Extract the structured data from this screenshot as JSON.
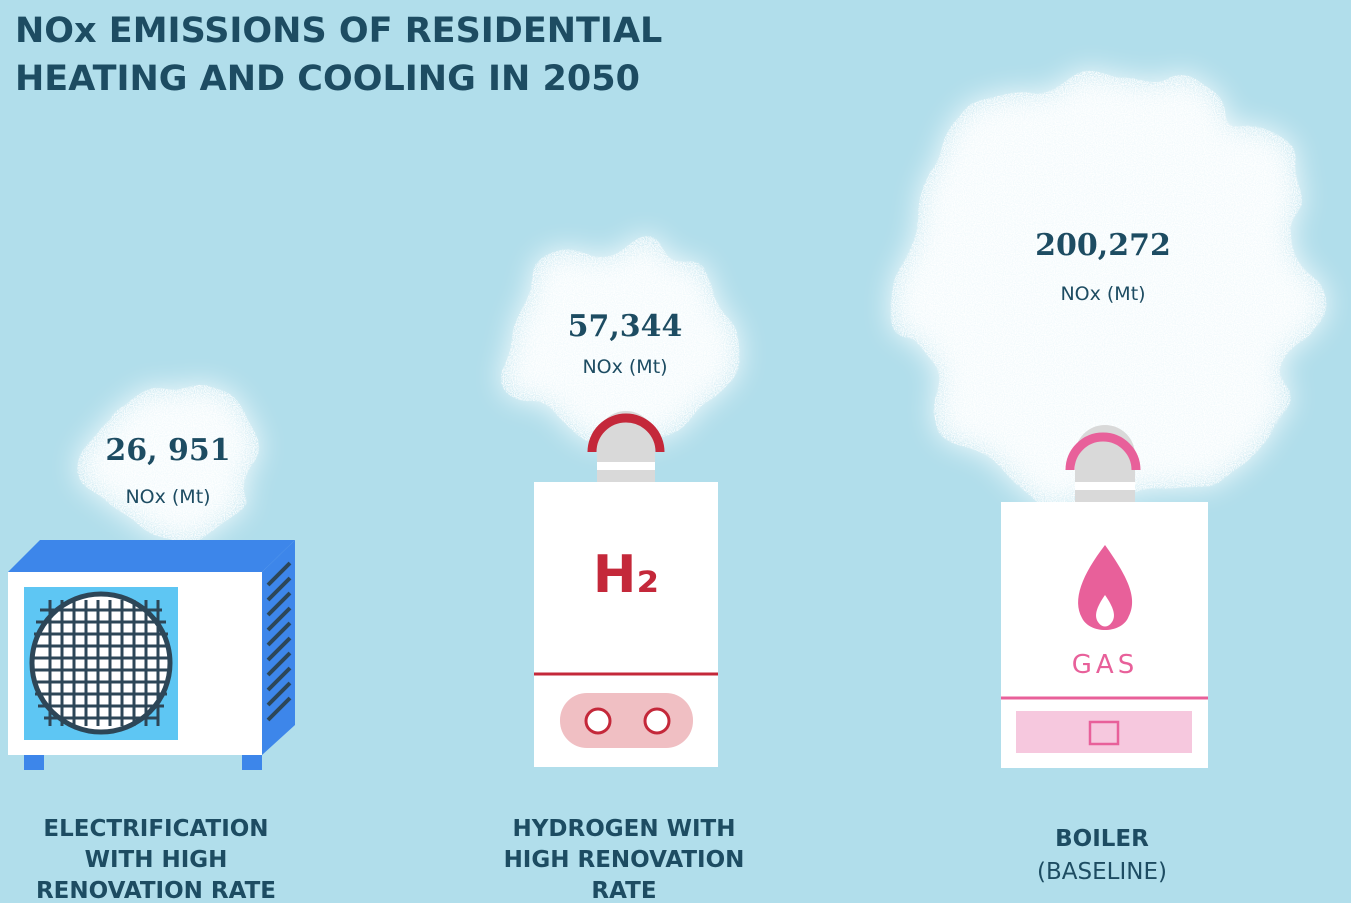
{
  "title_lines": [
    "NOx EMISSIONS OF RESIDENTIAL",
    "HEATING AND COOLING IN 2050"
  ],
  "items": [
    {
      "value": "26, 951",
      "unit": "NOx (Mt)",
      "label_lines": [
        "ELECTRIFICATION",
        "WITH HIGH",
        "RENOVATION RATE"
      ]
    },
    {
      "value": "57,344",
      "unit": "NOx (Mt)",
      "icon_text": "H₂",
      "label_lines": [
        "HYDROGEN WITH",
        "HIGH RENOVATION",
        "RATE"
      ]
    },
    {
      "value": "200,272",
      "unit": "NOx (Mt)",
      "icon_text": "GAS",
      "label_lines": [
        "BOILER"
      ],
      "sublabel": "(BASELINE)"
    }
  ]
}
